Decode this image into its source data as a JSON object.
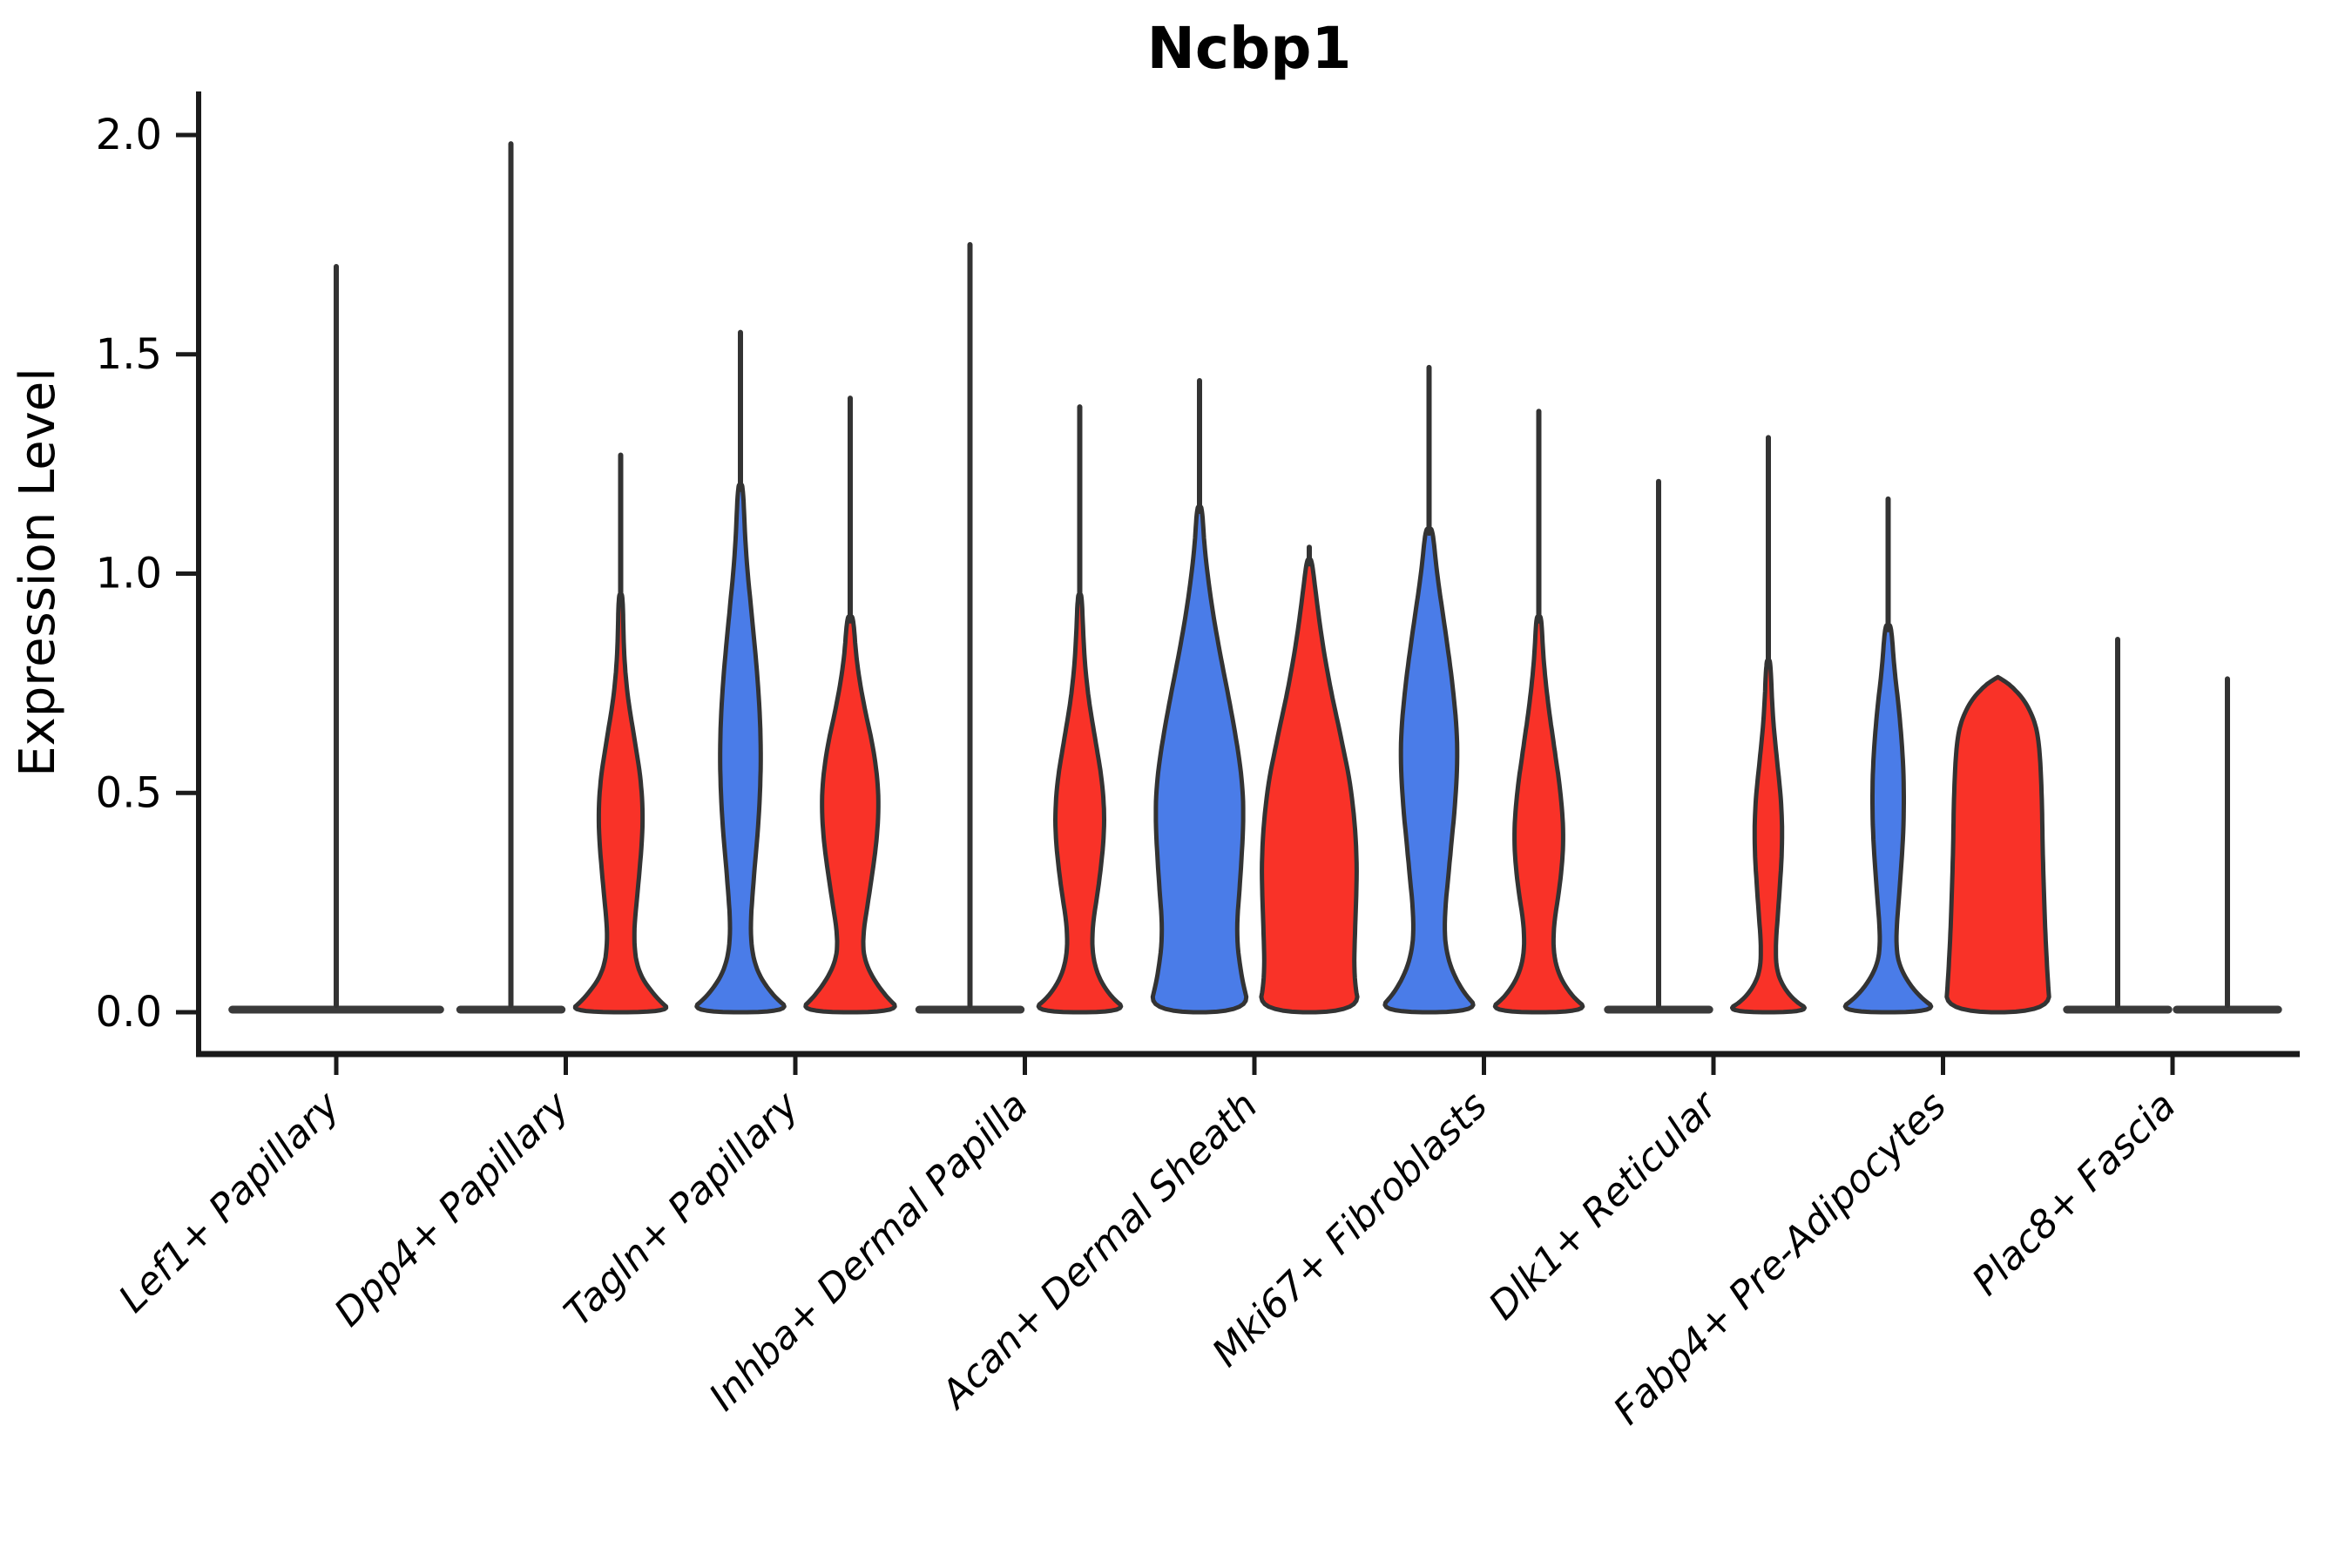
{
  "chart_data": {
    "type": "violin",
    "title": "Ncbp1",
    "ylabel": "Expression Level",
    "xlabel": "",
    "ylim": [
      -0.09,
      2.1
    ],
    "yticks": [
      "0.0",
      "0.5",
      "1.0",
      "1.5",
      "2.0"
    ],
    "ytick_values": [
      0.0,
      0.5,
      1.0,
      1.5,
      2.0
    ],
    "grid": false,
    "legend": "none",
    "colors": {
      "blue": "#4a7ce8",
      "red": "#f93228",
      "dark": "#3a3a3a",
      "outline": "#333333",
      "axis": "#1a1a1a"
    },
    "categories": [
      "Lef1+ Papillary",
      "Dpp4+ Papillary",
      "Tagln+ Papillary",
      "Inhba+ Dermal Papilla",
      "Acan+ Dermal Sheath",
      "Mki67+ Fibroblasts",
      "Dlk1+ Reticular",
      "Fabp4+ Pre-Adipocytes",
      "Plac8+ Fascia"
    ],
    "violins": [
      {
        "category": 0,
        "side": "full",
        "color": "dark",
        "shape": "flat",
        "max": 1.7,
        "profile": "flat"
      },
      {
        "category": 1,
        "side": "left",
        "color": "blue",
        "shape": "flat",
        "max": 1.98,
        "profile": "flat"
      },
      {
        "category": 1,
        "side": "right",
        "color": "red",
        "shape": "body",
        "max": 1.27,
        "profile": [
          [
            0,
            1.0
          ],
          [
            0.03,
            0.7
          ],
          [
            0.09,
            0.33
          ],
          [
            0.17,
            0.24
          ],
          [
            0.28,
            0.33
          ],
          [
            0.42,
            0.43
          ],
          [
            0.52,
            0.4
          ],
          [
            0.62,
            0.27
          ],
          [
            0.72,
            0.13
          ],
          [
            0.82,
            0.06
          ],
          [
            0.95,
            0.04
          ]
        ]
      },
      {
        "category": 2,
        "side": "left",
        "color": "blue",
        "shape": "body",
        "max": 1.55,
        "profile": [
          [
            0,
            1.0
          ],
          [
            0.04,
            0.6
          ],
          [
            0.1,
            0.28
          ],
          [
            0.18,
            0.18
          ],
          [
            0.3,
            0.25
          ],
          [
            0.45,
            0.36
          ],
          [
            0.6,
            0.4
          ],
          [
            0.75,
            0.34
          ],
          [
            0.9,
            0.22
          ],
          [
            1.05,
            0.1
          ],
          [
            1.2,
            0.05
          ]
        ]
      },
      {
        "category": 2,
        "side": "right",
        "color": "red",
        "shape": "body",
        "max": 1.4,
        "profile": [
          [
            0,
            1.0
          ],
          [
            0.04,
            0.65
          ],
          [
            0.1,
            0.32
          ],
          [
            0.16,
            0.22
          ],
          [
            0.28,
            0.38
          ],
          [
            0.4,
            0.52
          ],
          [
            0.5,
            0.55
          ],
          [
            0.6,
            0.45
          ],
          [
            0.7,
            0.26
          ],
          [
            0.8,
            0.12
          ],
          [
            0.9,
            0.06
          ]
        ]
      },
      {
        "category": 3,
        "side": "left",
        "color": "blue",
        "shape": "flat",
        "max": 1.75,
        "profile": "flat"
      },
      {
        "category": 3,
        "side": "right",
        "color": "red",
        "shape": "body",
        "max": 1.38,
        "profile": [
          [
            0,
            0.95
          ],
          [
            0.04,
            0.55
          ],
          [
            0.1,
            0.28
          ],
          [
            0.18,
            0.22
          ],
          [
            0.3,
            0.38
          ],
          [
            0.42,
            0.48
          ],
          [
            0.52,
            0.44
          ],
          [
            0.62,
            0.3
          ],
          [
            0.72,
            0.16
          ],
          [
            0.82,
            0.08
          ],
          [
            0.95,
            0.04
          ]
        ]
      },
      {
        "category": 4,
        "side": "left",
        "color": "blue",
        "shape": "body",
        "max": 1.44,
        "profile": [
          [
            0,
            0.97
          ],
          [
            0.08,
            0.8
          ],
          [
            0.18,
            0.7
          ],
          [
            0.3,
            0.78
          ],
          [
            0.45,
            0.85
          ],
          [
            0.55,
            0.8
          ],
          [
            0.68,
            0.62
          ],
          [
            0.8,
            0.42
          ],
          [
            0.92,
            0.24
          ],
          [
            1.05,
            0.1
          ],
          [
            1.15,
            0.05
          ]
        ]
      },
      {
        "category": 4,
        "side": "right",
        "color": "red",
        "shape": "body",
        "max": 1.06,
        "profile": [
          [
            0,
            0.97
          ],
          [
            0.08,
            0.85
          ],
          [
            0.2,
            0.88
          ],
          [
            0.35,
            0.92
          ],
          [
            0.5,
            0.82
          ],
          [
            0.62,
            0.62
          ],
          [
            0.74,
            0.4
          ],
          [
            0.85,
            0.24
          ],
          [
            0.95,
            0.13
          ],
          [
            1.03,
            0.05
          ]
        ]
      },
      {
        "category": 5,
        "side": "left",
        "color": "blue",
        "shape": "body",
        "max": 1.47,
        "profile": [
          [
            0,
            1.0
          ],
          [
            0.05,
            0.62
          ],
          [
            0.12,
            0.35
          ],
          [
            0.2,
            0.28
          ],
          [
            0.35,
            0.4
          ],
          [
            0.5,
            0.52
          ],
          [
            0.62,
            0.55
          ],
          [
            0.75,
            0.45
          ],
          [
            0.88,
            0.3
          ],
          [
            1.0,
            0.15
          ],
          [
            1.1,
            0.07
          ]
        ]
      },
      {
        "category": 5,
        "side": "right",
        "color": "red",
        "shape": "body",
        "max": 1.37,
        "profile": [
          [
            0,
            1.0
          ],
          [
            0.04,
            0.6
          ],
          [
            0.1,
            0.32
          ],
          [
            0.18,
            0.26
          ],
          [
            0.3,
            0.42
          ],
          [
            0.4,
            0.48
          ],
          [
            0.5,
            0.42
          ],
          [
            0.6,
            0.3
          ],
          [
            0.7,
            0.18
          ],
          [
            0.8,
            0.09
          ],
          [
            0.9,
            0.05
          ]
        ]
      },
      {
        "category": 6,
        "side": "left",
        "color": "blue",
        "shape": "flat",
        "max": 1.21,
        "profile": "flat"
      },
      {
        "category": 6,
        "side": "right",
        "color": "red",
        "shape": "body",
        "max": 1.31,
        "profile": [
          [
            0,
            0.85
          ],
          [
            0.03,
            0.45
          ],
          [
            0.08,
            0.18
          ],
          [
            0.14,
            0.13
          ],
          [
            0.25,
            0.2
          ],
          [
            0.38,
            0.27
          ],
          [
            0.48,
            0.25
          ],
          [
            0.58,
            0.16
          ],
          [
            0.68,
            0.08
          ],
          [
            0.8,
            0.04
          ]
        ]
      },
      {
        "category": 7,
        "side": "left",
        "color": "blue",
        "shape": "body",
        "max": 1.17,
        "profile": [
          [
            0,
            1.0
          ],
          [
            0.04,
            0.55
          ],
          [
            0.1,
            0.22
          ],
          [
            0.16,
            0.14
          ],
          [
            0.28,
            0.22
          ],
          [
            0.42,
            0.3
          ],
          [
            0.55,
            0.3
          ],
          [
            0.68,
            0.22
          ],
          [
            0.78,
            0.12
          ],
          [
            0.88,
            0.06
          ]
        ]
      },
      {
        "category": 7,
        "side": "right",
        "color": "red",
        "shape": "body",
        "max": 0.76,
        "profile": [
          [
            0,
            1.0
          ],
          [
            0.08,
            0.95
          ],
          [
            0.2,
            0.9
          ],
          [
            0.35,
            0.86
          ],
          [
            0.5,
            0.84
          ],
          [
            0.6,
            0.8
          ],
          [
            0.66,
            0.72
          ],
          [
            0.71,
            0.52
          ],
          [
            0.745,
            0.25
          ],
          [
            0.76,
            0.06
          ]
        ]
      },
      {
        "category": 8,
        "side": "left",
        "color": "blue",
        "shape": "flat",
        "max": 0.85,
        "profile": "flat"
      },
      {
        "category": 8,
        "side": "right",
        "color": "red",
        "shape": "flat",
        "max": 0.76,
        "profile": "flat"
      }
    ]
  }
}
